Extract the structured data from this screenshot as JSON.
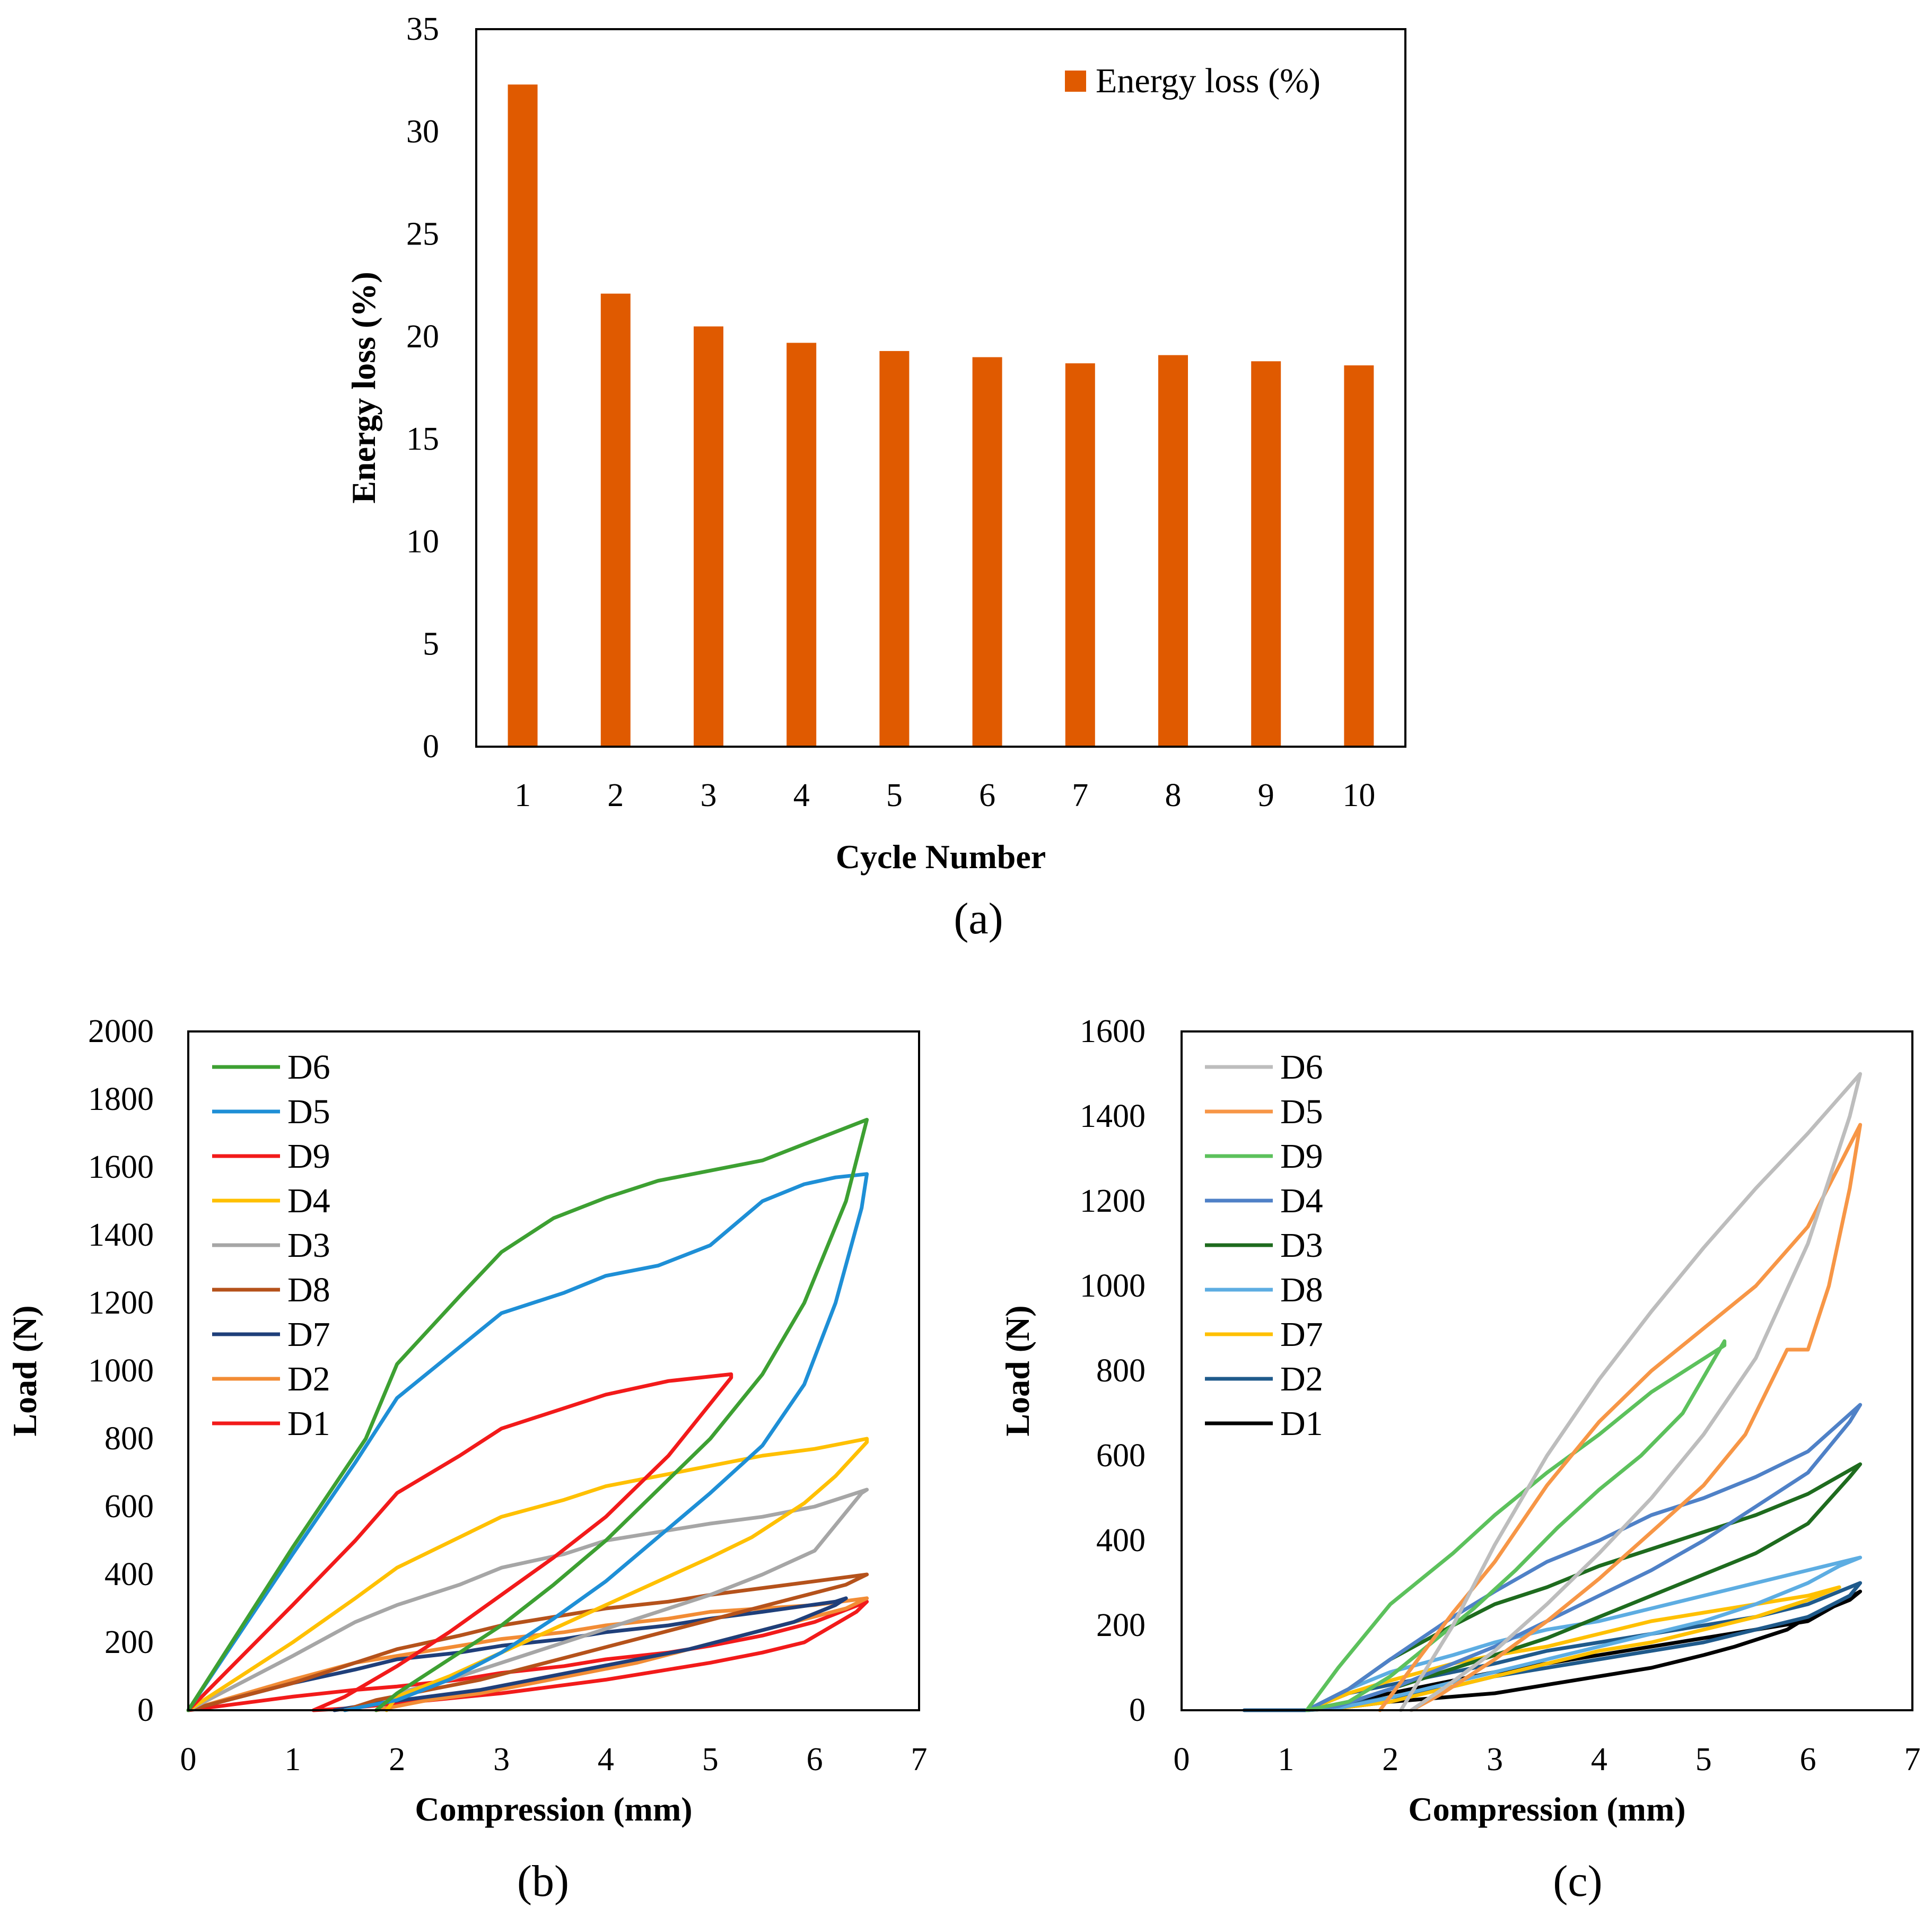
{
  "chart_data": [
    {
      "panel": "(a)",
      "type": "bar",
      "title": "",
      "xlabel": "Cycle Number",
      "ylabel": "Energy loss (%)",
      "ylim": [
        0,
        35
      ],
      "yticks": [
        0,
        5,
        10,
        15,
        20,
        25,
        30,
        35
      ],
      "categories": [
        "1",
        "2",
        "3",
        "4",
        "5",
        "6",
        "7",
        "8",
        "9",
        "10"
      ],
      "series": [
        {
          "name": "Energy loss (%)",
          "color": "#E05A00",
          "values": [
            32.3,
            22.1,
            20.5,
            19.7,
            19.3,
            19.0,
            18.7,
            19.1,
            18.8,
            18.6
          ]
        }
      ],
      "legend_position": "top-right",
      "grid": false
    },
    {
      "panel": "(b)",
      "type": "line",
      "title": "",
      "xlabel": "Compression (mm)",
      "ylabel": "Load (N)",
      "xlim": [
        0,
        7
      ],
      "ylim": [
        0,
        2000
      ],
      "xticks": [
        0,
        1,
        2,
        3,
        4,
        5,
        6,
        7
      ],
      "yticks": [
        0,
        200,
        400,
        600,
        800,
        1000,
        1200,
        1400,
        1600,
        1800,
        2000
      ],
      "legend_position": "top-left",
      "grid": false,
      "series": [
        {
          "name": "D6",
          "color": "#3DA032",
          "x": [
            0,
            1,
            1.7,
            2,
            2.6,
            3,
            3.5,
            4,
            4.5,
            5,
            5.5,
            6,
            6.5,
            6.3,
            5.9,
            5.5,
            5,
            4.5,
            4,
            3.5,
            3,
            2.5,
            2,
            1.8
          ],
          "y": [
            0,
            480,
            800,
            1020,
            1220,
            1350,
            1450,
            1510,
            1560,
            1590,
            1620,
            1680,
            1740,
            1500,
            1200,
            990,
            800,
            650,
            500,
            370,
            250,
            150,
            50,
            0
          ]
        },
        {
          "name": "D5",
          "color": "#1E8FD6",
          "x": [
            0,
            1,
            1.6,
            2,
            2.6,
            3,
            3.6,
            4,
            4.5,
            5,
            5.5,
            5.9,
            6.2,
            6.5,
            6.45,
            6.2,
            5.9,
            5.5,
            5,
            4.5,
            4,
            3.5,
            3,
            2.5,
            2,
            1.5
          ],
          "y": [
            0,
            460,
            730,
            920,
            1070,
            1170,
            1230,
            1280,
            1310,
            1370,
            1500,
            1550,
            1570,
            1580,
            1480,
            1200,
            960,
            780,
            640,
            510,
            380,
            270,
            170,
            90,
            30,
            0
          ]
        },
        {
          "name": "D9",
          "color": "#F21A1A",
          "x": [
            0,
            1,
            1.6,
            2,
            2.6,
            3,
            3.6,
            4,
            4.6,
            5.2,
            5.2,
            4.6,
            4,
            3.5,
            3,
            2.5,
            2,
            1.5,
            1.2
          ],
          "y": [
            0,
            310,
            500,
            640,
            750,
            830,
            890,
            930,
            970,
            990,
            980,
            750,
            570,
            450,
            340,
            230,
            130,
            40,
            0
          ]
        },
        {
          "name": "D4",
          "color": "#FFC000",
          "x": [
            0,
            1,
            1.6,
            2,
            2.6,
            3,
            3.6,
            4,
            4.5,
            5,
            5.5,
            6,
            6.5,
            6.5,
            6.2,
            5.9,
            5.4,
            5,
            4.5,
            4,
            3.5,
            3,
            2.5,
            2,
            1.9
          ],
          "y": [
            0,
            200,
            330,
            420,
            510,
            570,
            620,
            660,
            690,
            720,
            750,
            770,
            800,
            790,
            690,
            610,
            510,
            450,
            380,
            310,
            240,
            170,
            100,
            40,
            0
          ]
        },
        {
          "name": "D3",
          "color": "#A6A6A6",
          "x": [
            0,
            1,
            1.6,
            2,
            2.6,
            3,
            3.6,
            4,
            4.6,
            5,
            5.5,
            6,
            6.5,
            6.45,
            6,
            5.5,
            5,
            4.5,
            4,
            3.5,
            3,
            2.5,
            2
          ],
          "y": [
            0,
            160,
            260,
            310,
            370,
            420,
            460,
            500,
            530,
            550,
            570,
            600,
            650,
            640,
            470,
            400,
            340,
            290,
            240,
            190,
            140,
            90,
            50
          ]
        },
        {
          "name": "D8",
          "color": "#B5521B",
          "x": [
            0,
            1,
            1.6,
            2,
            2.6,
            3,
            3.6,
            4,
            4.6,
            5,
            5.5,
            6,
            6.5,
            6.3,
            5.8,
            5.3,
            4.8,
            4.3,
            3.8,
            3.3,
            2.8,
            2.3,
            1.8,
            1.5
          ],
          "y": [
            0,
            80,
            140,
            180,
            220,
            250,
            280,
            300,
            320,
            340,
            360,
            380,
            400,
            370,
            330,
            290,
            250,
            210,
            170,
            130,
            90,
            60,
            30,
            0
          ]
        },
        {
          "name": "D7",
          "color": "#1F3F7A",
          "x": [
            0,
            1,
            1.6,
            2,
            2.6,
            3,
            3.6,
            4,
            4.6,
            5,
            5.5,
            6.2,
            6.3,
            6.2,
            5.8,
            5.3,
            4.8,
            4.3,
            3.8,
            3.3,
            2.8,
            2.3,
            1.8,
            1.4
          ],
          "y": [
            0,
            80,
            120,
            150,
            170,
            190,
            210,
            230,
            250,
            270,
            290,
            320,
            330,
            310,
            260,
            220,
            180,
            150,
            120,
            90,
            60,
            40,
            20,
            0
          ]
        },
        {
          "name": "D2",
          "color": "#F28C35",
          "x": [
            0,
            1,
            1.6,
            2,
            2.6,
            3,
            3.6,
            4,
            4.6,
            5,
            5.5,
            6,
            6.5,
            6.3,
            5.8,
            5.3,
            4.8,
            4.3,
            3.8,
            3.3,
            2.8,
            2.3,
            1.8
          ],
          "y": [
            0,
            90,
            140,
            160,
            190,
            210,
            230,
            250,
            270,
            290,
            300,
            310,
            330,
            300,
            260,
            220,
            180,
            140,
            110,
            80,
            50,
            30,
            0
          ]
        },
        {
          "name": "D1",
          "color": "#F21A1A",
          "x": [
            0,
            1,
            1.6,
            2,
            2.6,
            3,
            3.6,
            4,
            4.6,
            5,
            5.5,
            6,
            6.5,
            6.4,
            5.9,
            5.5,
            5,
            4.5,
            4,
            3.5,
            3,
            2.5,
            2,
            1.5,
            1.2
          ],
          "y": [
            0,
            40,
            60,
            70,
            90,
            110,
            130,
            150,
            170,
            190,
            220,
            260,
            320,
            290,
            200,
            170,
            140,
            115,
            90,
            70,
            50,
            35,
            20,
            5,
            0
          ]
        }
      ]
    },
    {
      "panel": "(c)",
      "type": "line",
      "title": "",
      "xlabel": "Compression (mm)",
      "ylabel": "Load (N)",
      "xlim": [
        0,
        7
      ],
      "ylim": [
        0,
        1600
      ],
      "xticks": [
        0,
        1,
        2,
        3,
        4,
        5,
        6,
        7
      ],
      "yticks": [
        0,
        200,
        400,
        600,
        800,
        1000,
        1200,
        1400,
        1600
      ],
      "legend_position": "top-left",
      "grid": false,
      "series": [
        {
          "name": "D6",
          "color": "#BDBDBD",
          "x": [
            2.1,
            2.6,
            3,
            3.5,
            4,
            4.5,
            5,
            5.5,
            6,
            6.5,
            6.4,
            6,
            5.5,
            5,
            4.5,
            4,
            3.5,
            3,
            2.5,
            2.2
          ],
          "y": [
            0,
            200,
            390,
            600,
            780,
            940,
            1090,
            1230,
            1360,
            1500,
            1400,
            1100,
            830,
            650,
            500,
            370,
            250,
            140,
            50,
            0
          ]
        },
        {
          "name": "D5",
          "color": "#F79646",
          "x": [
            1.9,
            2.6,
            3,
            3.5,
            4,
            4.5,
            5,
            5.5,
            6,
            6.5,
            6.4,
            6.2,
            6,
            5.8,
            5.4,
            5,
            4.5,
            4,
            3.5,
            3,
            2.5,
            2.2
          ],
          "y": [
            0,
            230,
            350,
            530,
            680,
            800,
            900,
            1000,
            1140,
            1380,
            1230,
            1000,
            850,
            850,
            650,
            530,
            420,
            310,
            210,
            120,
            40,
            0
          ]
        },
        {
          "name": "D9",
          "color": "#5CC15C",
          "x": [
            1.2,
            1.5,
            2,
            2.6,
            3,
            3.5,
            4,
            4.5,
            5.2,
            5.2,
            4.8,
            4.4,
            4,
            3.6,
            3.2,
            2.8,
            2.4,
            2,
            1.6,
            1.2
          ],
          "y": [
            0,
            100,
            250,
            370,
            460,
            560,
            650,
            750,
            860,
            870,
            700,
            600,
            520,
            430,
            330,
            240,
            160,
            80,
            20,
            0
          ]
        },
        {
          "name": "D4",
          "color": "#4F81C7",
          "x": [
            1.2,
            1.6,
            2,
            2.6,
            3,
            3.5,
            4,
            4.5,
            5,
            5.5,
            6,
            6.5,
            6.4,
            6,
            5.5,
            5,
            4.5,
            4,
            3.5,
            3,
            2.5,
            2,
            1.5,
            1.2
          ],
          "y": [
            0,
            50,
            120,
            220,
            280,
            350,
            400,
            460,
            500,
            550,
            610,
            720,
            680,
            560,
            480,
            400,
            330,
            270,
            210,
            150,
            100,
            50,
            10,
            0
          ]
        },
        {
          "name": "D3",
          "color": "#1E6B1E",
          "x": [
            1.2,
            1.6,
            2,
            2.6,
            3,
            3.5,
            4,
            4.5,
            5,
            5.5,
            6,
            6.5,
            6.4,
            6,
            5.5,
            5,
            4.5,
            4,
            3.5,
            3,
            2.5,
            2,
            1.5,
            1.2
          ],
          "y": [
            0,
            50,
            120,
            200,
            250,
            290,
            340,
            380,
            420,
            460,
            510,
            580,
            550,
            440,
            370,
            320,
            270,
            220,
            170,
            130,
            90,
            50,
            10,
            0
          ]
        },
        {
          "name": "D8",
          "color": "#5DADE2",
          "x": [
            1.2,
            1.6,
            2,
            2.6,
            3,
            3.5,
            4,
            4.5,
            5,
            5.5,
            6,
            6.5,
            6.3,
            6,
            5.5,
            5,
            4.5,
            4,
            3.5,
            3,
            2.5,
            2,
            1.5,
            1.2
          ],
          "y": [
            0,
            50,
            90,
            130,
            160,
            190,
            210,
            240,
            270,
            300,
            330,
            360,
            340,
            300,
            250,
            210,
            180,
            150,
            120,
            90,
            60,
            30,
            5,
            0
          ]
        },
        {
          "name": "D7",
          "color": "#FFC000",
          "x": [
            1.2,
            1.6,
            2,
            2.6,
            3,
            3.5,
            4,
            4.5,
            5,
            5.5,
            6,
            6.3,
            6.2,
            6,
            5.5,
            5,
            4.5,
            4,
            3.5,
            3,
            2.5,
            2,
            1.5,
            1.2
          ],
          "y": [
            0,
            40,
            70,
            110,
            130,
            150,
            180,
            210,
            230,
            250,
            270,
            290,
            280,
            260,
            220,
            190,
            160,
            140,
            110,
            80,
            50,
            20,
            5,
            0
          ]
        },
        {
          "name": "D2",
          "color": "#1F5A8B",
          "x": [
            0.6,
            1.2,
            1.6,
            2,
            2.6,
            3,
            3.5,
            4,
            4.5,
            5,
            5.5,
            6,
            6.5,
            6.4,
            6,
            5.5,
            5,
            4.5,
            4,
            3.5,
            3,
            2.5,
            2,
            1.5,
            1.2
          ],
          "y": [
            0,
            0,
            40,
            60,
            90,
            110,
            140,
            160,
            180,
            200,
            220,
            250,
            300,
            270,
            220,
            190,
            160,
            140,
            120,
            100,
            80,
            50,
            30,
            10,
            0
          ]
        },
        {
          "name": "D1",
          "color": "#000000",
          "x": [
            1.2,
            1.6,
            2,
            2.6,
            3,
            3.5,
            4,
            4.5,
            5,
            5.5,
            6,
            6.5,
            6.4,
            6,
            5.8,
            5.3,
            5,
            4.5,
            4,
            3.5,
            3,
            2.5,
            2,
            1.5,
            1.2
          ],
          "y": [
            0,
            20,
            40,
            70,
            90,
            110,
            130,
            150,
            170,
            190,
            210,
            280,
            260,
            220,
            190,
            150,
            130,
            100,
            80,
            60,
            40,
            30,
            20,
            5,
            0
          ]
        }
      ]
    }
  ]
}
